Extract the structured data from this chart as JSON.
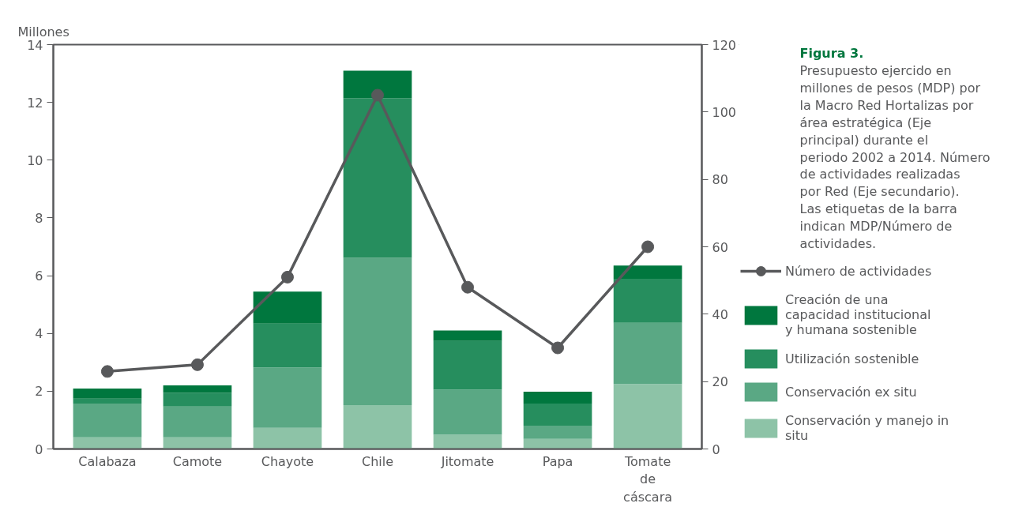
{
  "chart_data": {
    "type": "bar",
    "stacked": true,
    "title": "Figura 3.",
    "subtitle": "Presupuesto ejercido en millones de pesos (MDP) por la Macro Red Hortalizas por área estratégica (Eje principal) durante el periodo 2002 a 2014. Número de actividades realizadas por Red (Eje secundario). Las etiquetas de la barra indican MDP/Número de actividades.",
    "ylabel": "Millones",
    "categories": [
      "Calabaza",
      "Camote",
      "Chayote",
      "Chile",
      "Jitomate",
      "Papa",
      "Tomate de cáscara"
    ],
    "ylim": [
      0,
      14
    ],
    "yticks": [
      0,
      2,
      4,
      6,
      8,
      10,
      12,
      14
    ],
    "y2lim": [
      0,
      120
    ],
    "y2ticks": [
      0,
      20,
      40,
      60,
      80,
      100,
      120
    ],
    "series": [
      {
        "name": "Conservación y manejo in situ",
        "color": "#8dc3a7",
        "values": [
          0.4,
          0.4,
          0.73,
          1.52,
          0.49,
          0.35,
          2.25
        ]
      },
      {
        "name": "Conservación ex situ",
        "color": "#5aa884",
        "values": [
          1.17,
          1.07,
          2.09,
          5.1,
          1.57,
          0.46,
          2.12
        ]
      },
      {
        "name": "Utilización sostenible",
        "color": "#268e5e",
        "values": [
          0.17,
          0.48,
          1.52,
          5.53,
          1.68,
          0.76,
          1.52
        ]
      },
      {
        "name": "Creación de una capacidad institucional y humana sostenible",
        "color": "#00773e",
        "values": [
          0.35,
          0.25,
          1.11,
          0.95,
          0.36,
          0.41,
          0.46
        ]
      },
      {
        "name": "Número de actividades",
        "type": "line",
        "axis": "y2",
        "color": "#58595b",
        "marker": "circle",
        "values": [
          23,
          25,
          51,
          105,
          48,
          30,
          60
        ]
      }
    ],
    "legend": "right",
    "grid": false
  }
}
